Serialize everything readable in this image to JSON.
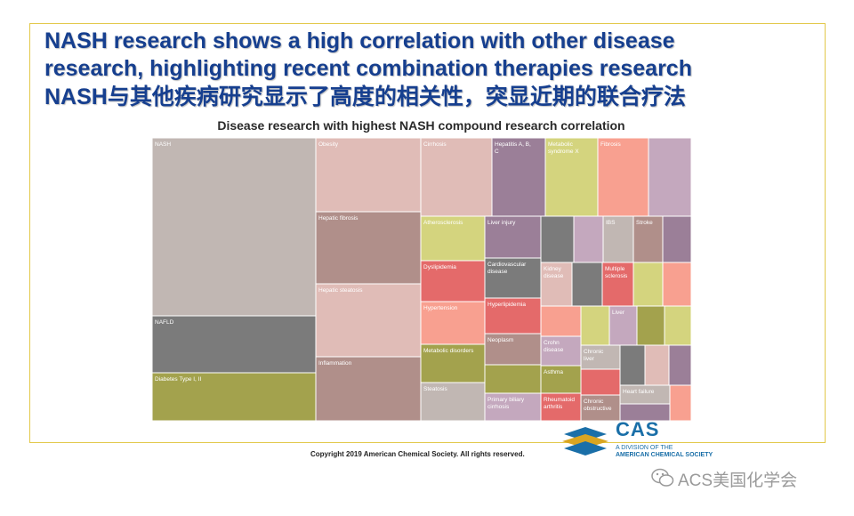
{
  "slide": {
    "title_line1": "NASH research shows a high correlation with other disease",
    "title_line2": "research, highlighting recent combination therapies research",
    "title_line3": "NASH与其他疾病研究显示了高度的相关性，突显近期的联合疗法",
    "copyright": "Copyright 2019 American Chemical Society. All rights reserved.",
    "cas_name": "CAS",
    "cas_division_line1": "A DIVISION OF THE",
    "cas_division_line2": "AMERICAN CHEMICAL SOCIETY",
    "watermark": "ACS美国化学会",
    "colors": {
      "title": "#163f8f",
      "frame": "#e2c84a",
      "cas_blue": "#1a6fa8",
      "cas_gold": "#d9a521"
    }
  },
  "chart_data": {
    "type": "treemap",
    "title": "Disease research with highest NASH compound research correlation",
    "nodes": [
      {
        "label": "NASH",
        "color": "#c1b7b3"
      },
      {
        "label": "NAFLD",
        "color": "#7b7b7b"
      },
      {
        "label": "Diabetes Type I, II",
        "color": "#a3a24d"
      },
      {
        "label": "Obesity",
        "color": "#e0bcb7"
      },
      {
        "label": "Hepatic fibrosis",
        "color": "#b08f8a"
      },
      {
        "label": "Hepatic steatosis",
        "color": "#e0bcb7"
      },
      {
        "label": "Inflammation",
        "color": "#b08f8a"
      },
      {
        "label": "Cirrhosis",
        "color": "#e0bcb7"
      },
      {
        "label": "Hepatitis A, B, C",
        "color": "#9b7f98"
      },
      {
        "label": "Metabolic syndrome X",
        "color": "#d4d47e"
      },
      {
        "label": "Fibrosis",
        "color": "#f8a090"
      },
      {
        "label": "",
        "color": "#c4a8be"
      },
      {
        "label": "Atherosclerosis",
        "color": "#d4d47e"
      },
      {
        "label": "Dyslipidemia",
        "color": "#e46a6a"
      },
      {
        "label": "Hypertension",
        "color": "#f8a090"
      },
      {
        "label": "Metabolic disorders",
        "color": "#a3a24d"
      },
      {
        "label": "Steatosis",
        "color": "#c1b7b3"
      },
      {
        "label": "Liver injury",
        "color": "#9b7f98"
      },
      {
        "label": "Cardiovascular disease",
        "color": "#7b7b7b"
      },
      {
        "label": "Hyperlipidemia",
        "color": "#e46a6a"
      },
      {
        "label": "Neoplasm",
        "color": "#b08f8a"
      },
      {
        "label": "",
        "color": "#a3a24d"
      },
      {
        "label": "Primary biliary cirrhosis",
        "color": "#c4a8be"
      },
      {
        "label": "",
        "color": "#7b7b7b"
      },
      {
        "label": "",
        "color": "#c4a8be"
      },
      {
        "label": "IBS",
        "color": "#c1b7b3"
      },
      {
        "label": "Stroke",
        "color": "#b08f8a"
      },
      {
        "label": "",
        "color": "#9b7f98"
      },
      {
        "label": "Kidney disease",
        "color": "#e0bcb7"
      },
      {
        "label": "",
        "color": "#7b7b7b"
      },
      {
        "label": "Multiple sclerosis",
        "color": "#e46a6a"
      },
      {
        "label": "",
        "color": "#d4d47e"
      },
      {
        "label": "",
        "color": "#f8a090"
      },
      {
        "label": "",
        "color": "#f8a090"
      },
      {
        "label": "",
        "color": "#d4d47e"
      },
      {
        "label": "Liver",
        "color": "#c4a8be"
      },
      {
        "label": "",
        "color": "#a3a24d"
      },
      {
        "label": "",
        "color": "#d4d47e"
      },
      {
        "label": "Crohn disease",
        "color": "#c4a8be"
      },
      {
        "label": "Chronic liver",
        "color": "#c1b7b3"
      },
      {
        "label": "",
        "color": "#7b7b7b"
      },
      {
        "label": "",
        "color": "#e0bcb7"
      },
      {
        "label": "",
        "color": "#9b7f98"
      },
      {
        "label": "Asthma",
        "color": "#a3a24d"
      },
      {
        "label": "",
        "color": "#e46a6a"
      },
      {
        "label": "Heart failure",
        "color": "#c1b7b3"
      },
      {
        "label": "",
        "color": "#f8a090"
      },
      {
        "label": "Rheumatoid arthritis",
        "color": "#e46a6a"
      },
      {
        "label": "Chronic obstructive",
        "color": "#b08f8a"
      },
      {
        "label": "",
        "color": "#9b7f98"
      }
    ]
  }
}
